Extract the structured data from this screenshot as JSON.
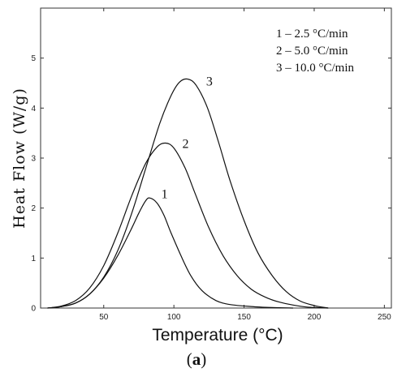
{
  "chart_data": {
    "type": "line",
    "title": "",
    "xlabel": "Temperature (°C)",
    "ylabel": "Heat Flow (W/g)",
    "xlim": [
      5,
      255
    ],
    "ylim": [
      0,
      6
    ],
    "xticks": [
      50,
      100,
      150,
      200,
      250
    ],
    "yticks": [
      0,
      1,
      2,
      3,
      4,
      5
    ],
    "grid": false,
    "legend": {
      "placement": "top-right",
      "entries": [
        "1 – 2.5 °C/min",
        "2 – 5.0 °C/min",
        "3 – 10.0 °C/min"
      ]
    },
    "panel_label_prefix": "(",
    "panel_label_letter": "a",
    "panel_label_suffix": ")",
    "series": [
      {
        "name": "1",
        "points": [
          [
            10,
            0
          ],
          [
            20,
            0.03
          ],
          [
            30,
            0.1
          ],
          [
            40,
            0.28
          ],
          [
            50,
            0.6
          ],
          [
            60,
            1.05
          ],
          [
            70,
            1.6
          ],
          [
            75,
            1.9
          ],
          [
            80,
            2.15
          ],
          [
            83,
            2.2
          ],
          [
            88,
            2.1
          ],
          [
            93,
            1.85
          ],
          [
            98,
            1.5
          ],
          [
            105,
            1.05
          ],
          [
            112,
            0.65
          ],
          [
            120,
            0.35
          ],
          [
            130,
            0.15
          ],
          [
            140,
            0.07
          ],
          [
            155,
            0.03
          ],
          [
            170,
            0.01
          ],
          [
            185,
            0
          ]
        ]
      },
      {
        "name": "2",
        "points": [
          [
            10,
            0
          ],
          [
            20,
            0.04
          ],
          [
            30,
            0.15
          ],
          [
            40,
            0.4
          ],
          [
            50,
            0.85
          ],
          [
            60,
            1.5
          ],
          [
            70,
            2.25
          ],
          [
            80,
            2.9
          ],
          [
            88,
            3.22
          ],
          [
            94,
            3.3
          ],
          [
            100,
            3.2
          ],
          [
            108,
            2.8
          ],
          [
            115,
            2.3
          ],
          [
            125,
            1.6
          ],
          [
            135,
            1.05
          ],
          [
            145,
            0.65
          ],
          [
            155,
            0.38
          ],
          [
            165,
            0.22
          ],
          [
            175,
            0.12
          ],
          [
            185,
            0.06
          ],
          [
            195,
            0.02
          ],
          [
            210,
            0
          ]
        ]
      },
      {
        "name": "3",
        "points": [
          [
            10,
            0
          ],
          [
            20,
            0.03
          ],
          [
            30,
            0.1
          ],
          [
            40,
            0.28
          ],
          [
            50,
            0.62
          ],
          [
            60,
            1.15
          ],
          [
            70,
            1.9
          ],
          [
            80,
            2.8
          ],
          [
            90,
            3.7
          ],
          [
            98,
            4.25
          ],
          [
            104,
            4.52
          ],
          [
            110,
            4.58
          ],
          [
            116,
            4.45
          ],
          [
            124,
            4.0
          ],
          [
            132,
            3.3
          ],
          [
            140,
            2.55
          ],
          [
            150,
            1.75
          ],
          [
            160,
            1.1
          ],
          [
            170,
            0.65
          ],
          [
            180,
            0.33
          ],
          [
            190,
            0.14
          ],
          [
            200,
            0.05
          ],
          [
            210,
            0
          ]
        ]
      }
    ],
    "curve_labels": [
      {
        "text": "1",
        "x": 91,
        "y": 2.2
      },
      {
        "text": "2",
        "x": 106,
        "y": 3.2
      },
      {
        "text": "3",
        "x": 123,
        "y": 4.45
      }
    ]
  }
}
